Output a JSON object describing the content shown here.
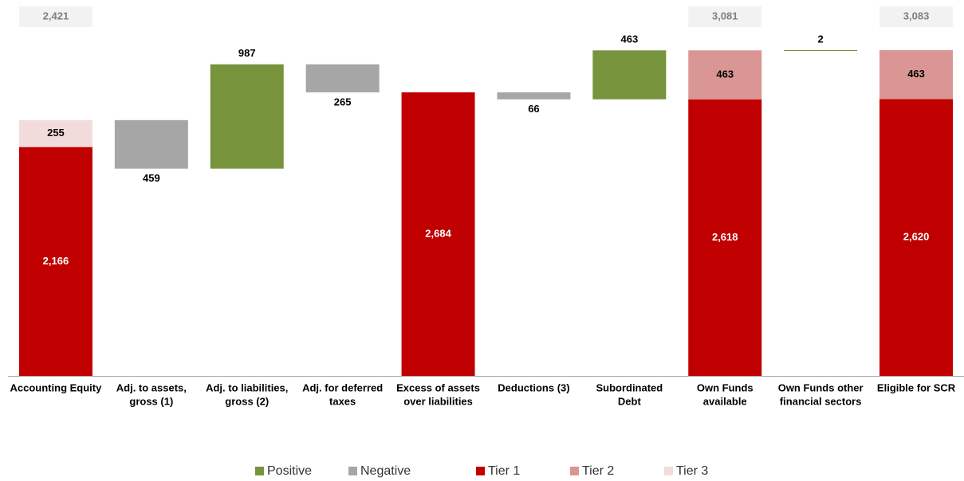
{
  "chart_data": {
    "type": "waterfall",
    "categories": [
      [
        "Accounting Equity"
      ],
      [
        "Adj. to assets,",
        "gross (1)"
      ],
      [
        "Adj. to liabilities,",
        "gross (2)"
      ],
      [
        "Adj. for deferred",
        "taxes"
      ],
      [
        "Excess of assets",
        "over liabilities"
      ],
      [
        "Deductions (3)"
      ],
      [
        "Subordinated",
        "Debt"
      ],
      [
        "Own Funds",
        "available"
      ],
      [
        "Own Funds other",
        "financial sectors"
      ],
      [
        "Eligible for SCR"
      ]
    ],
    "series": [
      {
        "name": "Positive",
        "color": "#77933c",
        "values": [
          null,
          null,
          987,
          null,
          null,
          null,
          463,
          null,
          2,
          null
        ]
      },
      {
        "name": "Negative",
        "color": "#a6a6a6",
        "values": [
          null,
          459,
          null,
          265,
          null,
          66,
          null,
          null,
          null,
          null
        ]
      },
      {
        "name": "Tier 1",
        "color": "#c00000",
        "values": [
          2166,
          null,
          null,
          null,
          2684,
          null,
          null,
          2618,
          null,
          2620
        ],
        "value_labels": [
          "2,166",
          null,
          null,
          null,
          "2,684",
          null,
          null,
          "2,618",
          null,
          "2,620"
        ]
      },
      {
        "name": "Tier 2",
        "color": "#da9694",
        "values": [
          null,
          null,
          null,
          null,
          null,
          null,
          null,
          463,
          null,
          463
        ]
      },
      {
        "name": "Tier 3",
        "color": "#f2dcdb",
        "values": [
          255,
          null,
          null,
          null,
          null,
          null,
          null,
          null,
          null,
          null
        ]
      }
    ],
    "totals": [
      2421,
      null,
      null,
      null,
      null,
      null,
      null,
      3081,
      null,
      3083
    ],
    "total_labels": [
      "2,421",
      null,
      null,
      null,
      null,
      null,
      null,
      "3,081",
      null,
      "3,083"
    ],
    "legend": "bottom"
  }
}
